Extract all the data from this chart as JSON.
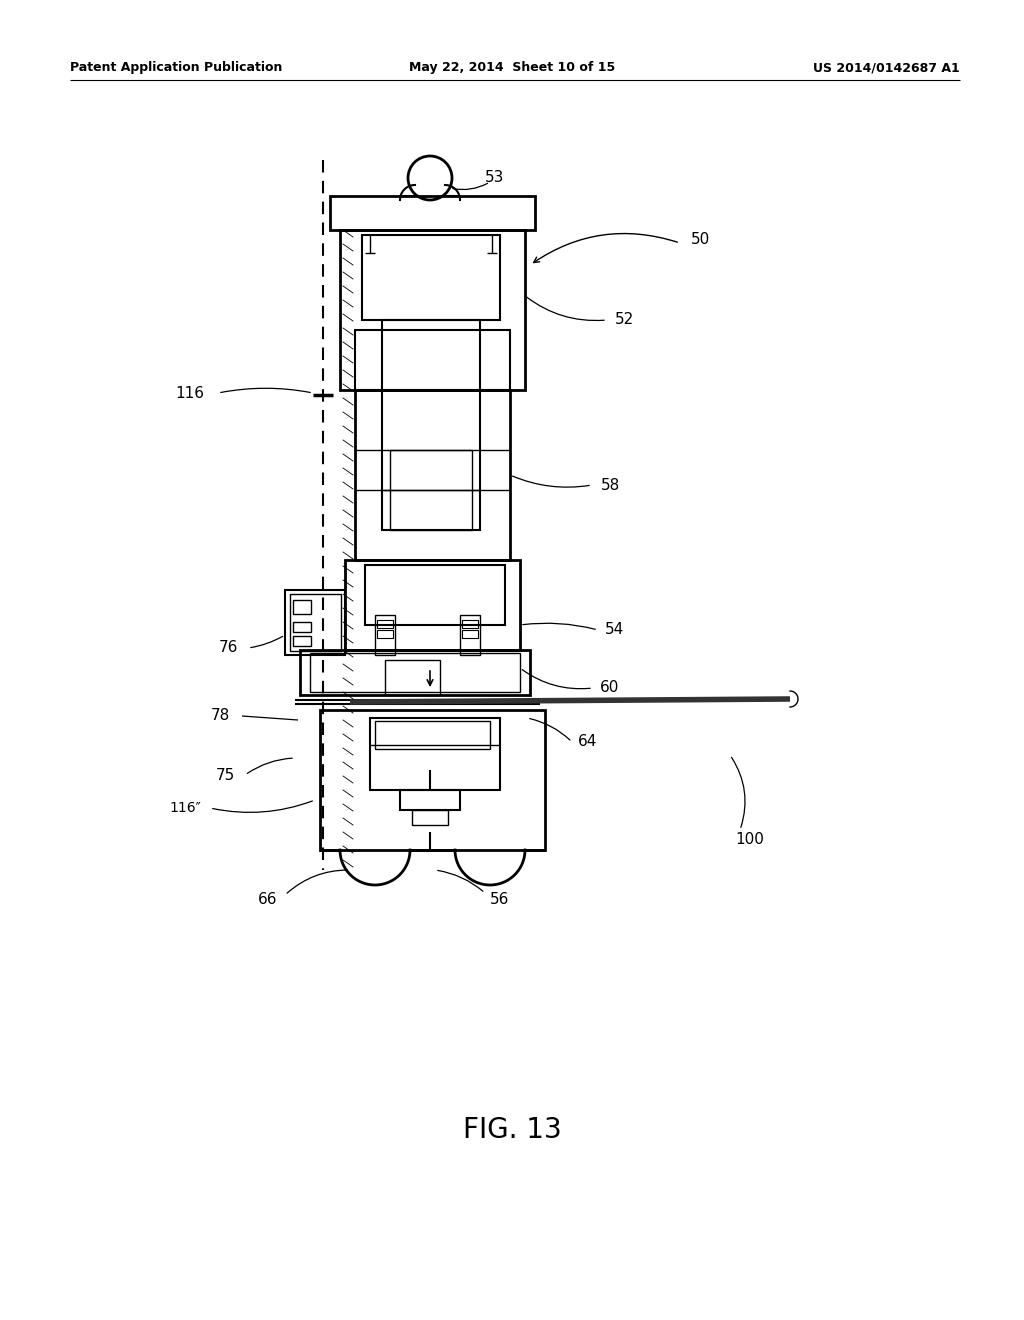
{
  "background_color": "#ffffff",
  "header_left": "Patent Application Publication",
  "header_mid": "May 22, 2014  Sheet 10 of 15",
  "header_right": "US 2014/0142687 A1",
  "figure_label": "FIG. 13"
}
